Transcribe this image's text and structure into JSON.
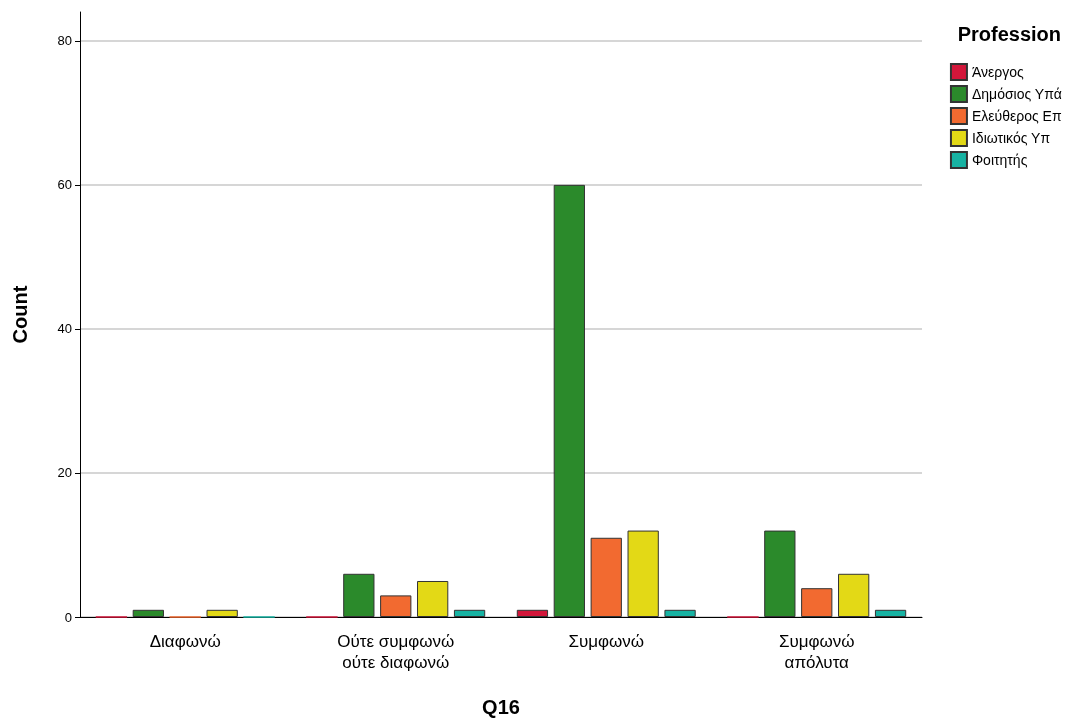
{
  "chart_data": {
    "type": "bar",
    "xlabel": "Q16",
    "ylabel": "Count",
    "legend_title": "Profession",
    "categories": [
      "Διαφωνώ",
      "Ούτε συμφωνώ ούτε διαφωνώ",
      "Συμφωνώ",
      "Συμφωνώ απόλυτα"
    ],
    "series": [
      {
        "name": "Άνεργος",
        "color": "#d2163a",
        "values": [
          0,
          0,
          1,
          0
        ]
      },
      {
        "name": "Δημόσιος Υπά",
        "color": "#2b8a2b",
        "values": [
          1,
          6,
          60,
          12
        ]
      },
      {
        "name": "Ελεύθερος Επ",
        "color": "#f26a30",
        "values": [
          0,
          3,
          11,
          4
        ]
      },
      {
        "name": "Ιδιωτικός Υπ",
        "color": "#e3d916",
        "values": [
          1,
          5,
          12,
          6
        ]
      },
      {
        "name": "Φοιτητής",
        "color": "#17b3a3",
        "values": [
          0,
          1,
          1,
          1
        ]
      }
    ],
    "ylim": [
      0,
      84
    ],
    "yticks": [
      0,
      20,
      40,
      60,
      80
    ],
    "grid": "y",
    "legend": "top right"
  }
}
